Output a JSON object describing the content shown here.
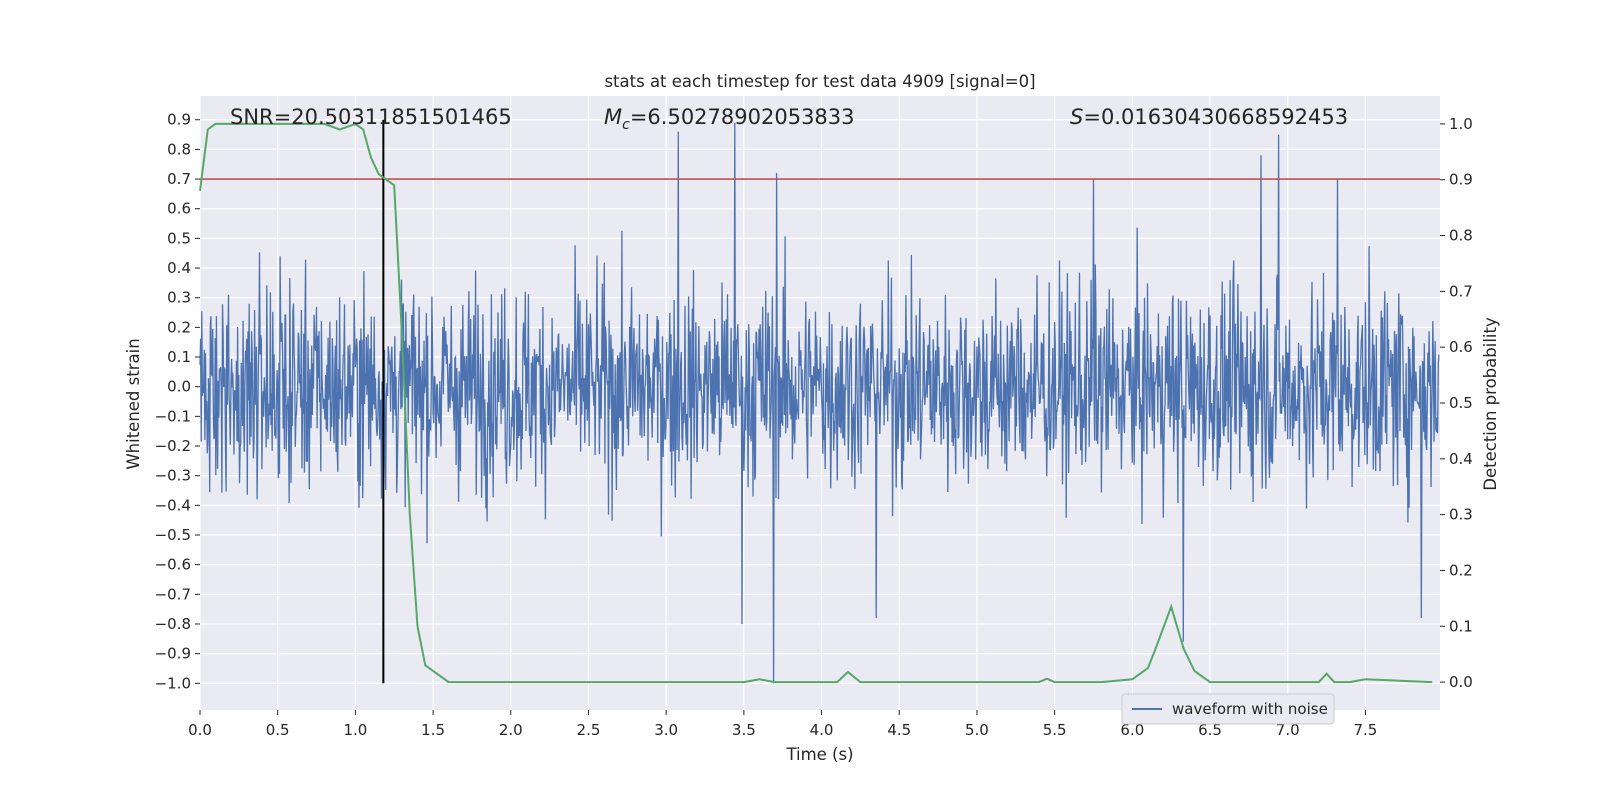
{
  "chart_data": {
    "type": "line",
    "title": "stats at each timestep for test data 4909 [signal=0]",
    "xlabel": "Time (s)",
    "ylabel": "Whitened strain",
    "y2label": "Detection probability",
    "xlim": [
      0.0,
      7.98
    ],
    "ylim": [
      -1.09,
      0.98
    ],
    "y2lim": [
      -0.05,
      1.05
    ],
    "xticks": [
      "0.0",
      "0.5",
      "1.0",
      "1.5",
      "2.0",
      "2.5",
      "3.0",
      "3.5",
      "4.0",
      "4.5",
      "5.0",
      "5.5",
      "6.0",
      "6.5",
      "7.0",
      "7.5"
    ],
    "yticks": [
      "0.9",
      "0.8",
      "0.7",
      "0.6",
      "0.5",
      "0.4",
      "0.3",
      "0.2",
      "0.1",
      "0.0",
      "-0.1",
      "-0.2",
      "-0.3",
      "-0.4",
      "-0.5",
      "-0.6",
      "-0.7",
      "-0.8",
      "-0.9",
      "-1.0"
    ],
    "y2ticks": [
      "1.0",
      "0.9",
      "0.8",
      "0.7",
      "0.6",
      "0.5",
      "0.4",
      "0.3",
      "0.2",
      "0.1",
      "0.0"
    ],
    "annotations": {
      "snr": "SNR=20.50311851501465",
      "mc_symbol": "M",
      "mc_sub": "c",
      "mc_value": "=6.50278902053833",
      "s_symbol": "S",
      "s_value": "=0.01630430668592453"
    },
    "threshold": {
      "value": 0.7,
      "color": "#c44e52"
    },
    "marker_time": 1.18,
    "legend": {
      "label": "waveform with noise",
      "placement": "lower-right"
    },
    "noise_series": {
      "name": "waveform with noise",
      "color": "#4c72b0",
      "sample_rate_hz": 256,
      "typical_amplitude": 0.33,
      "max": 0.89,
      "min": -1.0,
      "spikes": [
        {
          "t": 3.08,
          "v": 0.86
        },
        {
          "t": 3.44,
          "v": 0.89
        },
        {
          "t": 3.69,
          "v": -1.0
        },
        {
          "t": 3.49,
          "v": -0.8
        },
        {
          "t": 4.35,
          "v": -0.78
        },
        {
          "t": 6.33,
          "v": -0.86
        },
        {
          "t": 6.83,
          "v": 0.78
        },
        {
          "t": 6.94,
          "v": 0.85
        },
        {
          "t": 7.86,
          "v": -0.78
        },
        {
          "t": 3.71,
          "v": 0.72
        },
        {
          "t": 5.75,
          "v": 0.7
        },
        {
          "t": 7.32,
          "v": 0.7
        }
      ]
    },
    "probability_series": {
      "name": "detection probability",
      "color": "#55a868",
      "t": [
        0.0,
        0.05,
        0.1,
        0.2,
        0.3,
        0.4,
        0.5,
        0.6,
        0.7,
        0.8,
        0.9,
        1.0,
        1.05,
        1.1,
        1.15,
        1.2,
        1.25,
        1.3,
        1.35,
        1.4,
        1.45,
        1.5,
        1.6,
        1.8,
        2.0,
        2.2,
        2.5,
        3.0,
        3.5,
        3.6,
        3.7,
        4.0,
        4.1,
        4.17,
        4.25,
        4.5,
        5.0,
        5.4,
        5.45,
        5.5,
        5.8,
        6.0,
        6.05,
        6.1,
        6.15,
        6.25,
        6.33,
        6.4,
        6.5,
        7.0,
        7.2,
        7.25,
        7.3,
        7.4,
        7.5,
        7.93
      ],
      "values": [
        0.88,
        0.99,
        1.0,
        1.0,
        1.0,
        1.0,
        1.0,
        1.0,
        1.0,
        1.0,
        0.99,
        1.0,
        0.99,
        0.94,
        0.91,
        0.9,
        0.89,
        0.62,
        0.3,
        0.1,
        0.03,
        0.02,
        0.0,
        0.0,
        0.0,
        0.0,
        0.0,
        0.0,
        0.0,
        0.005,
        0.0,
        0.0,
        0.0,
        0.018,
        0.0,
        0.0,
        0.0,
        0.0,
        0.006,
        0.0,
        0.0,
        0.005,
        0.015,
        0.025,
        0.06,
        0.135,
        0.06,
        0.02,
        0.0,
        0.0,
        0.0,
        0.015,
        0.0,
        0.0,
        0.005,
        0.0
      ]
    }
  }
}
